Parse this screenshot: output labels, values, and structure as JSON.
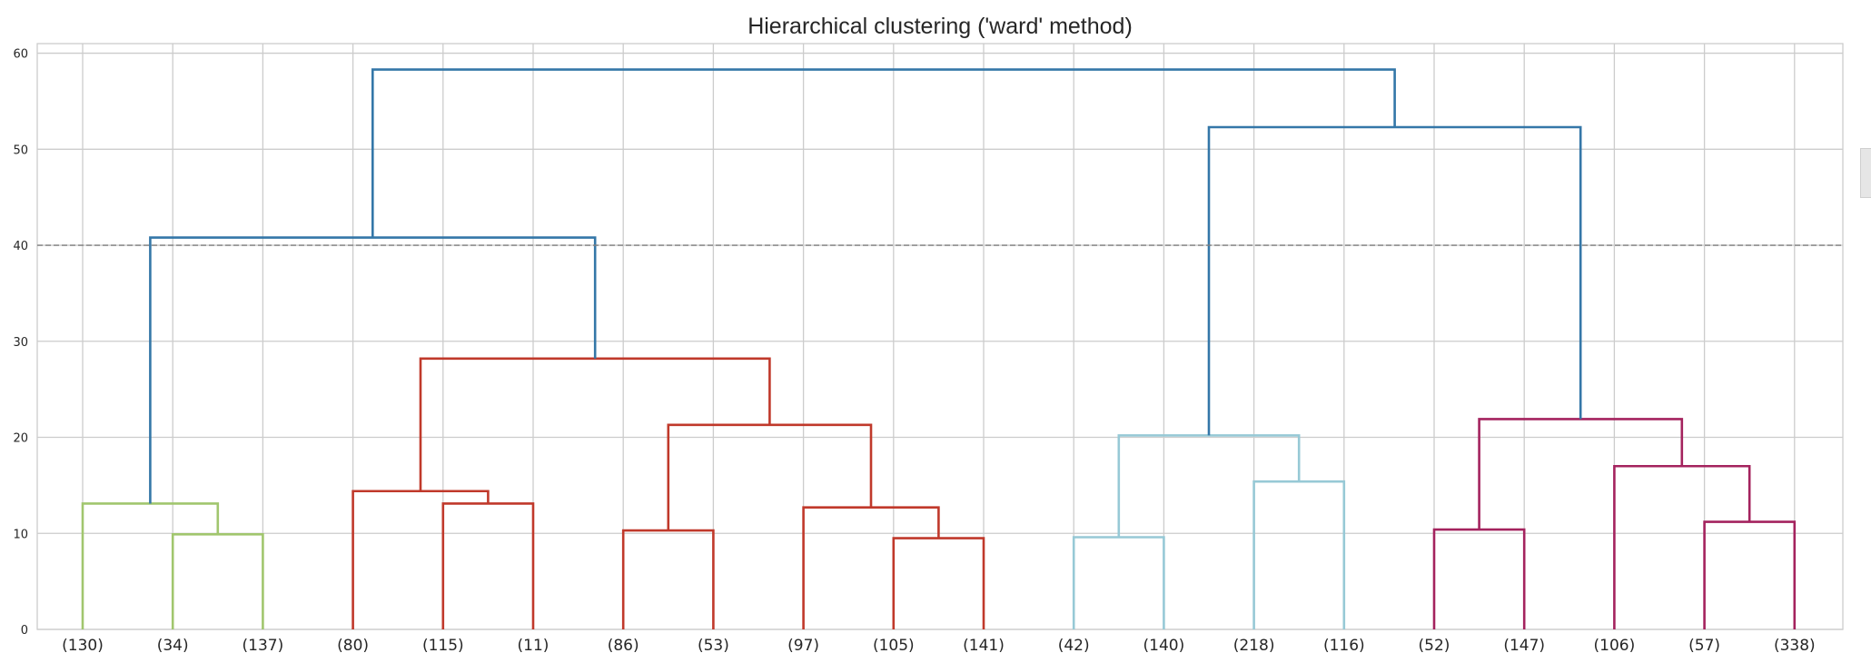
{
  "chart_data": {
    "type": "dendrogram",
    "title": "Hierarchical clustering ('ward' method)",
    "xlabel": "",
    "ylabel": "",
    "ylim": [
      0,
      61
    ],
    "yticks": [
      0,
      10,
      20,
      30,
      40,
      50,
      60
    ],
    "grid": true,
    "cut_line": 40,
    "leaves": [
      "(130)",
      "(34)",
      "(137)",
      "(80)",
      "(115)",
      "(11)",
      "(86)",
      "(53)",
      "(97)",
      "(105)",
      "(141)",
      "(42)",
      "(140)",
      "(218)",
      "(116)",
      "(52)",
      "(147)",
      "(106)",
      "(57)",
      "(338)"
    ],
    "colors": {
      "green": "#a1c66e",
      "red": "#c0392b",
      "lightblue": "#97c9d6",
      "purple": "#a4235e",
      "blue": "#3477a8"
    },
    "merges": [
      {
        "left": 1,
        "right": 2,
        "height": 9.9,
        "color": "green"
      },
      {
        "left": 0,
        "right": "m0",
        "height": 13.1,
        "color": "green"
      },
      {
        "left": 4,
        "right": 5,
        "height": 13.1,
        "color": "red"
      },
      {
        "left": 3,
        "right": "m2",
        "height": 14.4,
        "color": "red"
      },
      {
        "left": 6,
        "right": 7,
        "height": 10.3,
        "color": "red"
      },
      {
        "left": 9,
        "right": 10,
        "height": 9.5,
        "color": "red"
      },
      {
        "left": 8,
        "right": "m5",
        "height": 12.7,
        "color": "red"
      },
      {
        "left": "m4",
        "right": "m6",
        "height": 21.3,
        "color": "red"
      },
      {
        "left": "m3",
        "right": "m7",
        "height": 28.2,
        "color": "red"
      },
      {
        "left": "m1",
        "right": "m8",
        "height": 40.8,
        "color": "blue"
      },
      {
        "left": 11,
        "right": 12,
        "height": 9.6,
        "color": "lightblue"
      },
      {
        "left": 13,
        "right": 14,
        "height": 15.4,
        "color": "lightblue"
      },
      {
        "left": "m10",
        "right": "m11",
        "height": 20.2,
        "color": "lightblue"
      },
      {
        "left": 15,
        "right": 16,
        "height": 10.4,
        "color": "purple"
      },
      {
        "left": 18,
        "right": 19,
        "height": 11.2,
        "color": "purple"
      },
      {
        "left": 17,
        "right": "m14",
        "height": 17.0,
        "color": "purple"
      },
      {
        "left": "m13",
        "right": "m15",
        "height": 21.9,
        "color": "purple"
      },
      {
        "left": "m12",
        "right": "m16",
        "height": 52.3,
        "color": "blue"
      },
      {
        "left": "m9",
        "right": "m17",
        "height": 58.3,
        "color": "blue"
      }
    ]
  }
}
